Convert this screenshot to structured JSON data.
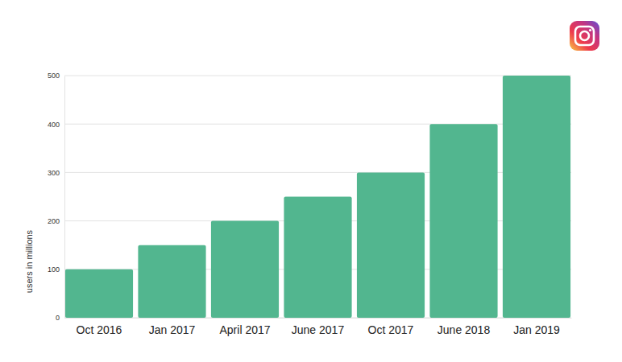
{
  "chart_data": {
    "type": "bar",
    "y_label": "users in millions",
    "categories": [
      "Oct 2016",
      "Jan 2017",
      "April 2017",
      "June 2017",
      "Oct 2017",
      "June 2018",
      "Jan 2019"
    ],
    "values": [
      100,
      150,
      200,
      250,
      300,
      400,
      500
    ],
    "color": "#52b68f",
    "ylim": [
      0,
      500
    ],
    "yticks": [
      0,
      100,
      200,
      300,
      400,
      500
    ],
    "grid": true
  }
}
